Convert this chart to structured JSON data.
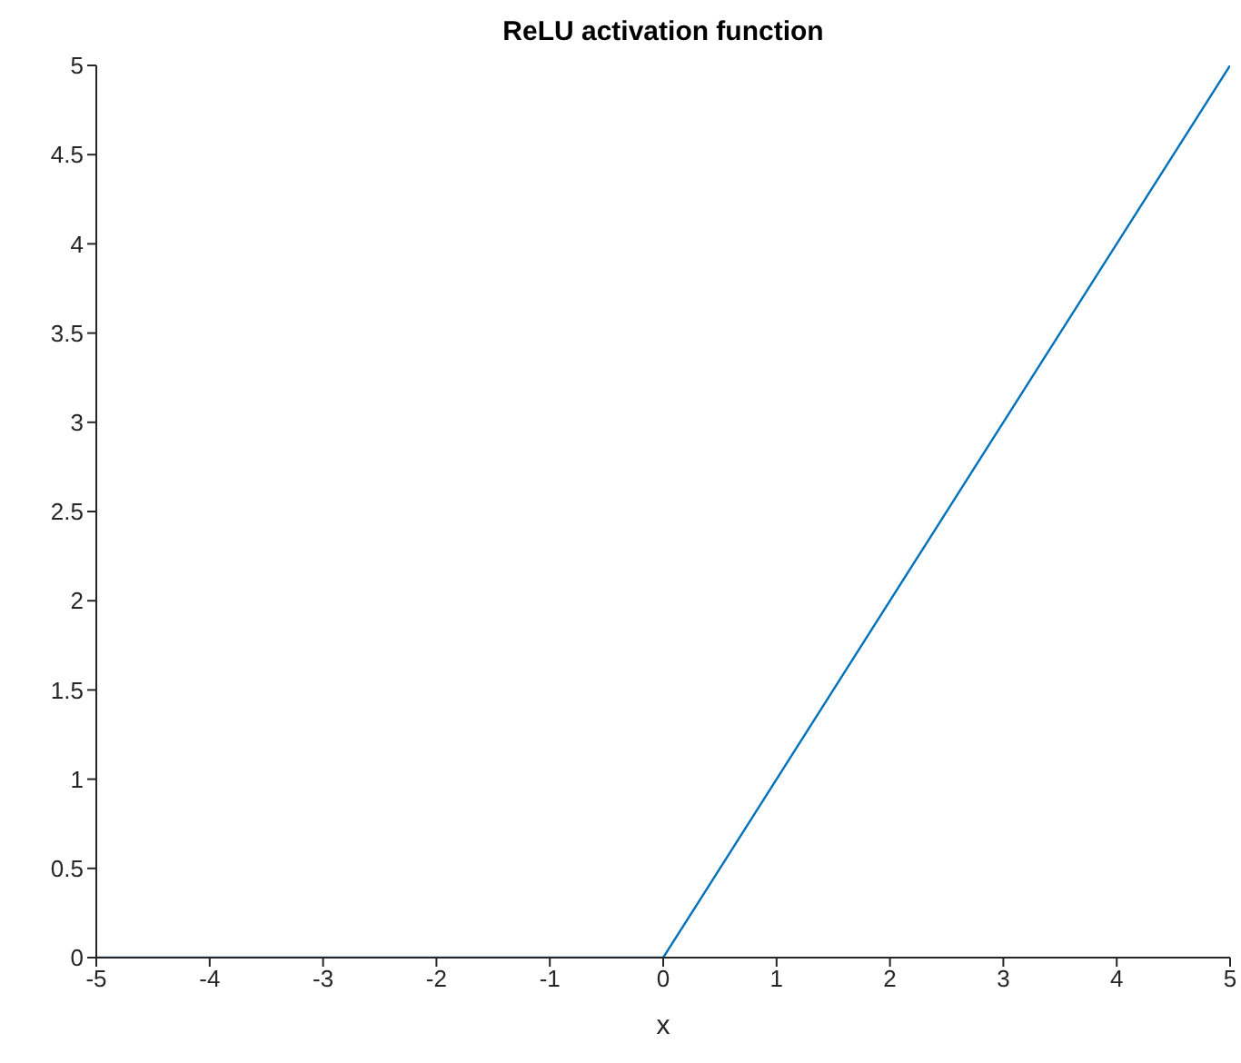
{
  "chart_data": {
    "type": "line",
    "title": "ReLU activation function",
    "xlabel": "x",
    "x": [
      -5,
      0,
      5
    ],
    "series": [
      {
        "color": "#0072bd",
        "values": [
          0,
          0,
          5
        ]
      }
    ],
    "xlim": [
      -5,
      5
    ],
    "xticks": [
      -5,
      -4,
      -3,
      -2,
      -1,
      0,
      1,
      2,
      3,
      4,
      5
    ],
    "ylim": [
      0,
      5
    ],
    "yticks": [
      0,
      0.5,
      1,
      1.5,
      2,
      2.5,
      3,
      3.5,
      4,
      4.5,
      5
    ],
    "grid": false,
    "legend": false,
    "marker": "none",
    "line_style": "solid"
  }
}
